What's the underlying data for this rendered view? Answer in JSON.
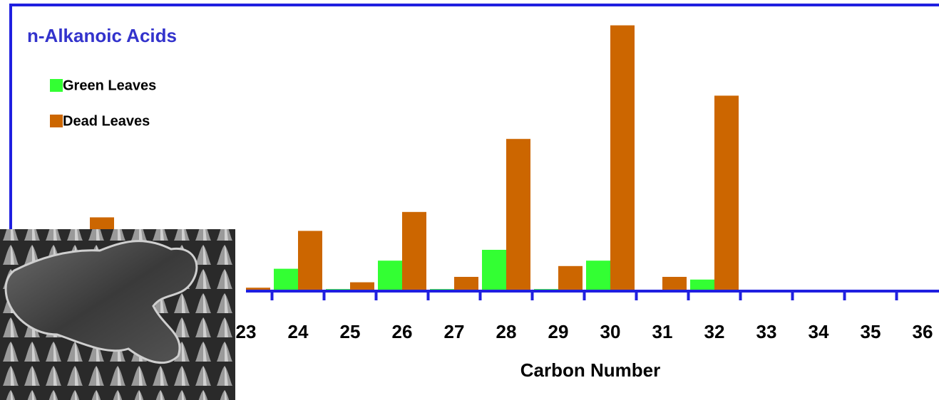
{
  "chart_data": {
    "type": "bar",
    "title": "n-Alkanoic Acids",
    "x_label": "Carbon Number",
    "categories": [
      null,
      null,
      null,
      "23",
      "24",
      "25",
      "26",
      "27",
      "28",
      "29",
      "30",
      "31",
      "32",
      "33",
      "34",
      "35",
      "36"
    ],
    "series": [
      {
        "name": "Green Leaves",
        "color": "#33ff33",
        "values": [
          null,
          null,
          null,
          0,
          8,
          0.5,
          11,
          0.5,
          15,
          0.5,
          11,
          0,
          4,
          0,
          0,
          0,
          0
        ]
      },
      {
        "name": "Dead Leaves",
        "color": "#cc6600",
        "values": [
          27,
          null,
          null,
          1,
          22,
          3,
          29,
          5,
          56,
          9,
          98,
          5,
          72,
          0,
          0,
          0,
          0
        ]
      }
    ],
    "ylim": [
      0,
      100
    ],
    "axis_color": "#1f1fe0",
    "title_color": "#3333cc"
  }
}
